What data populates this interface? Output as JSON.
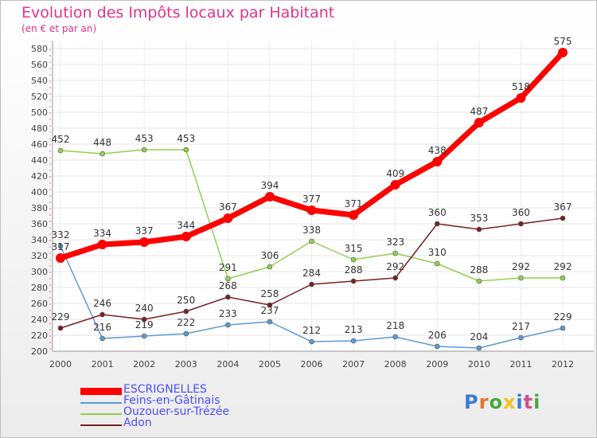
{
  "header": {
    "title": "Evolution des Impôts locaux par Habitant",
    "subtitle": "(en € et par an)"
  },
  "logo": {
    "text": "Proxiti",
    "colors": [
      "#3a7bd5",
      "#e8732c",
      "#4aa93b",
      "#f0c419",
      "#3a7bd5",
      "#d94b8e",
      "#4aa93b"
    ]
  },
  "chart_data": {
    "type": "line",
    "x": [
      "2000",
      "2001",
      "2002",
      "2003",
      "2004",
      "2005",
      "2006",
      "2007",
      "2008",
      "2009",
      "2010",
      "2011",
      "2012"
    ],
    "ylim": [
      200,
      580
    ],
    "yticks": [
      200,
      220,
      240,
      260,
      280,
      300,
      320,
      340,
      360,
      380,
      400,
      420,
      440,
      460,
      480,
      500,
      520,
      540,
      560,
      580
    ],
    "grid": true,
    "legend_position": "bottom-left",
    "series": [
      {
        "name": "Feins-en-Gâtinais",
        "color": "#5b9bd5",
        "values": [
          332,
          216,
          219,
          222,
          233,
          237,
          212,
          213,
          218,
          206,
          204,
          217,
          229
        ]
      },
      {
        "name": "Ouzouer-sur-Trézée",
        "color": "#92d050",
        "values": [
          452,
          448,
          453,
          453,
          291,
          306,
          338,
          315,
          323,
          310,
          288,
          292,
          292
        ]
      },
      {
        "name": "Adon",
        "color": "#7a2020",
        "values": [
          229,
          246,
          240,
          250,
          268,
          258,
          284,
          288,
          292,
          360,
          353,
          360,
          367
        ]
      },
      {
        "name": "ESCRIGNELLES",
        "color": "#ff0000",
        "values": [
          317,
          334,
          337,
          344,
          367,
          394,
          377,
          371,
          409,
          438,
          487,
          518,
          575
        ]
      }
    ],
    "legend_order": [
      "ESCRIGNELLES",
      "Feins-en-Gâtinais",
      "Ouzouer-sur-Trézée",
      "Adon"
    ]
  }
}
